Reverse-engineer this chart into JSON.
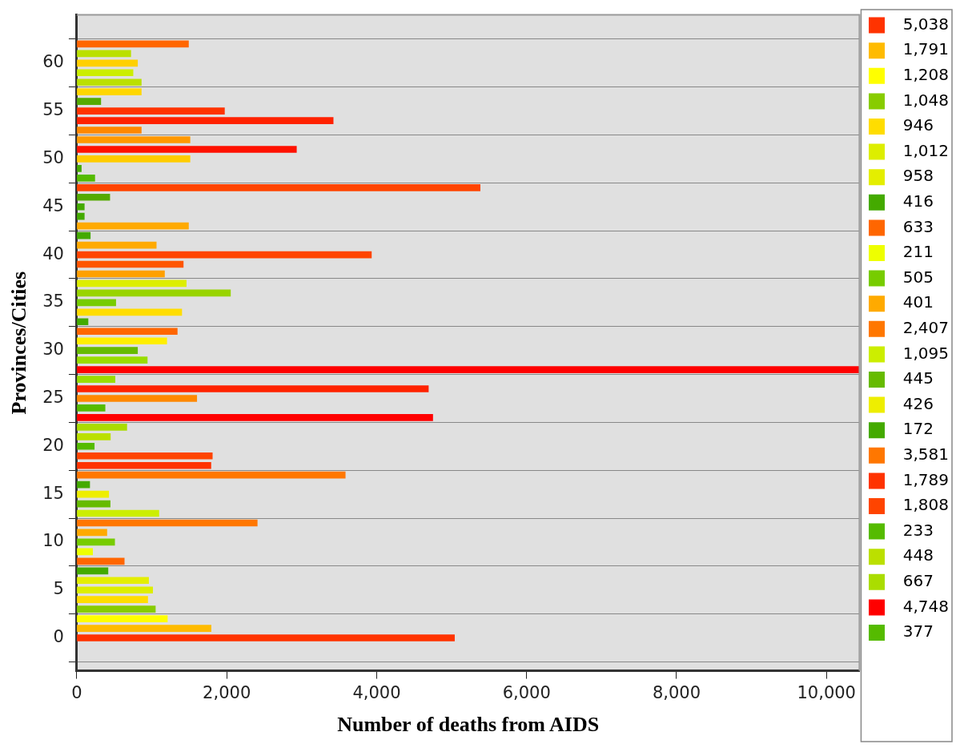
{
  "chart_data": {
    "type": "bar",
    "orientation": "horizontal",
    "xlabel": "Number of deaths from AIDS",
    "ylabel": "Provinces/Cities",
    "xlim": [
      0,
      10440
    ],
    "xticks": [
      0,
      {
        "value": 2000,
        "label": "2,000"
      },
      {
        "value": 4000,
        "label": "4,000"
      },
      {
        "value": 6000,
        "label": "6,000"
      },
      {
        "value": 8000,
        "label": "8,000"
      },
      {
        "value": 10000,
        "label": "10,000"
      }
    ],
    "ylim": [
      -0.8,
      62.4
    ],
    "yticks": [
      0,
      5,
      10,
      15,
      20,
      25,
      30,
      35,
      40,
      45,
      50,
      55,
      60
    ],
    "grid": "y",
    "legend": "right",
    "series": [
      {
        "name": "5,038",
        "color": "#ff3300",
        "x": [
          0
        ],
        "values": [
          5038
        ]
      },
      {
        "name": "1,791",
        "color": "#ffbb00",
        "x": [
          1
        ],
        "values": [
          1791
        ]
      },
      {
        "name": "1,208",
        "color": "#ffff00",
        "x": [
          2
        ],
        "values": [
          1208
        ]
      },
      {
        "name": "1,048",
        "color": "#88cc00",
        "x": [
          3
        ],
        "values": [
          1048
        ]
      },
      {
        "name": "946",
        "color": "#ffdd00",
        "x": [
          4
        ],
        "values": [
          946
        ]
      },
      {
        "name": "1,012",
        "color": "#ddee00",
        "x": [
          5
        ],
        "values": [
          1012
        ]
      },
      {
        "name": "958",
        "color": "#e4ee00",
        "x": [
          6
        ],
        "values": [
          958
        ]
      },
      {
        "name": "416",
        "color": "#44aa00",
        "x": [
          7
        ],
        "values": [
          416
        ]
      },
      {
        "name": "633",
        "color": "#ff6600",
        "x": [
          8
        ],
        "values": [
          633
        ]
      },
      {
        "name": "211",
        "color": "#eeff00",
        "x": [
          9
        ],
        "values": [
          211
        ]
      },
      {
        "name": "505",
        "color": "#77cc00",
        "x": [
          10
        ],
        "values": [
          505
        ]
      },
      {
        "name": "401",
        "color": "#ffaa00",
        "x": [
          11
        ],
        "values": [
          401
        ]
      },
      {
        "name": "2,407",
        "color": "#ff7700",
        "x": [
          12
        ],
        "values": [
          2407
        ]
      },
      {
        "name": "1,095",
        "color": "#ccee00",
        "x": [
          13
        ],
        "values": [
          1095
        ]
      },
      {
        "name": "445",
        "color": "#66bb00",
        "x": [
          14
        ],
        "values": [
          445
        ]
      },
      {
        "name": "426",
        "color": "#eeee00",
        "x": [
          15
        ],
        "values": [
          426
        ]
      },
      {
        "name": "172",
        "color": "#44aa00",
        "x": [
          16
        ],
        "values": [
          172
        ]
      },
      {
        "name": "3,581",
        "color": "#ff7700",
        "x": [
          17
        ],
        "values": [
          3581
        ]
      },
      {
        "name": "1,789",
        "color": "#ff3300",
        "x": [
          18
        ],
        "values": [
          1789
        ]
      },
      {
        "name": "1,808",
        "color": "#ff4400",
        "x": [
          19
        ],
        "values": [
          1808
        ]
      },
      {
        "name": "233",
        "color": "#55bb00",
        "x": [
          20
        ],
        "values": [
          233
        ]
      },
      {
        "name": "448",
        "color": "#bbe000",
        "x": [
          21
        ],
        "values": [
          448
        ]
      },
      {
        "name": "667",
        "color": "#aadd00",
        "x": [
          22
        ],
        "values": [
          667
        ]
      },
      {
        "name": "4,748",
        "color": "#ff0000",
        "x": [
          23
        ],
        "values": [
          4748
        ]
      },
      {
        "name": "377",
        "color": "#55bb00",
        "x": [
          24
        ],
        "values": [
          377
        ]
      },
      {
        "x": [
          25,
          26,
          27,
          28,
          29,
          30,
          31,
          32,
          33,
          34,
          35,
          36,
          37,
          38,
          39,
          40,
          41,
          42,
          43,
          44,
          45,
          46,
          47,
          48,
          49,
          50,
          51,
          52,
          53,
          54,
          55,
          56,
          57,
          58,
          59,
          60,
          61,
          62
        ],
        "values": [
          1600,
          4690,
          510,
          10440,
          940,
          810,
          1200,
          1340,
          150,
          1400,
          520,
          2050,
          1460,
          1170,
          1420,
          3930,
          1060,
          180,
          1490,
          100,
          100,
          440,
          5380,
          240,
          60,
          1510,
          2930,
          1510,
          860,
          3420,
          1970,
          320,
          860,
          860,
          750,
          810,
          720,
          1490
        ],
        "colors": [
          "#ff8800",
          "#ff2200",
          "#99dd00",
          "#ff0000",
          "#99dd00",
          "#66bb00",
          "#ffee00",
          "#ff6600",
          "#44aa00",
          "#ffdd00",
          "#77cc00",
          "#99d400",
          "#ddee00",
          "#ffa000",
          "#ff5500",
          "#ff4400",
          "#ffaa00",
          "#44aa00",
          "#ffaa00",
          "#44aa00",
          "#44aa00",
          "#55aa00",
          "#ff4400",
          "#55bb00",
          "#44aa00",
          "#ffcc00",
          "#ff1100",
          "#ff9900",
          "#ff8800",
          "#ff2200",
          "#ff3300",
          "#55aa00",
          "#ffd700",
          "#bbe000",
          "#ccee00",
          "#ffd000",
          "#bbe000",
          "#ff6600"
        ]
      }
    ]
  }
}
